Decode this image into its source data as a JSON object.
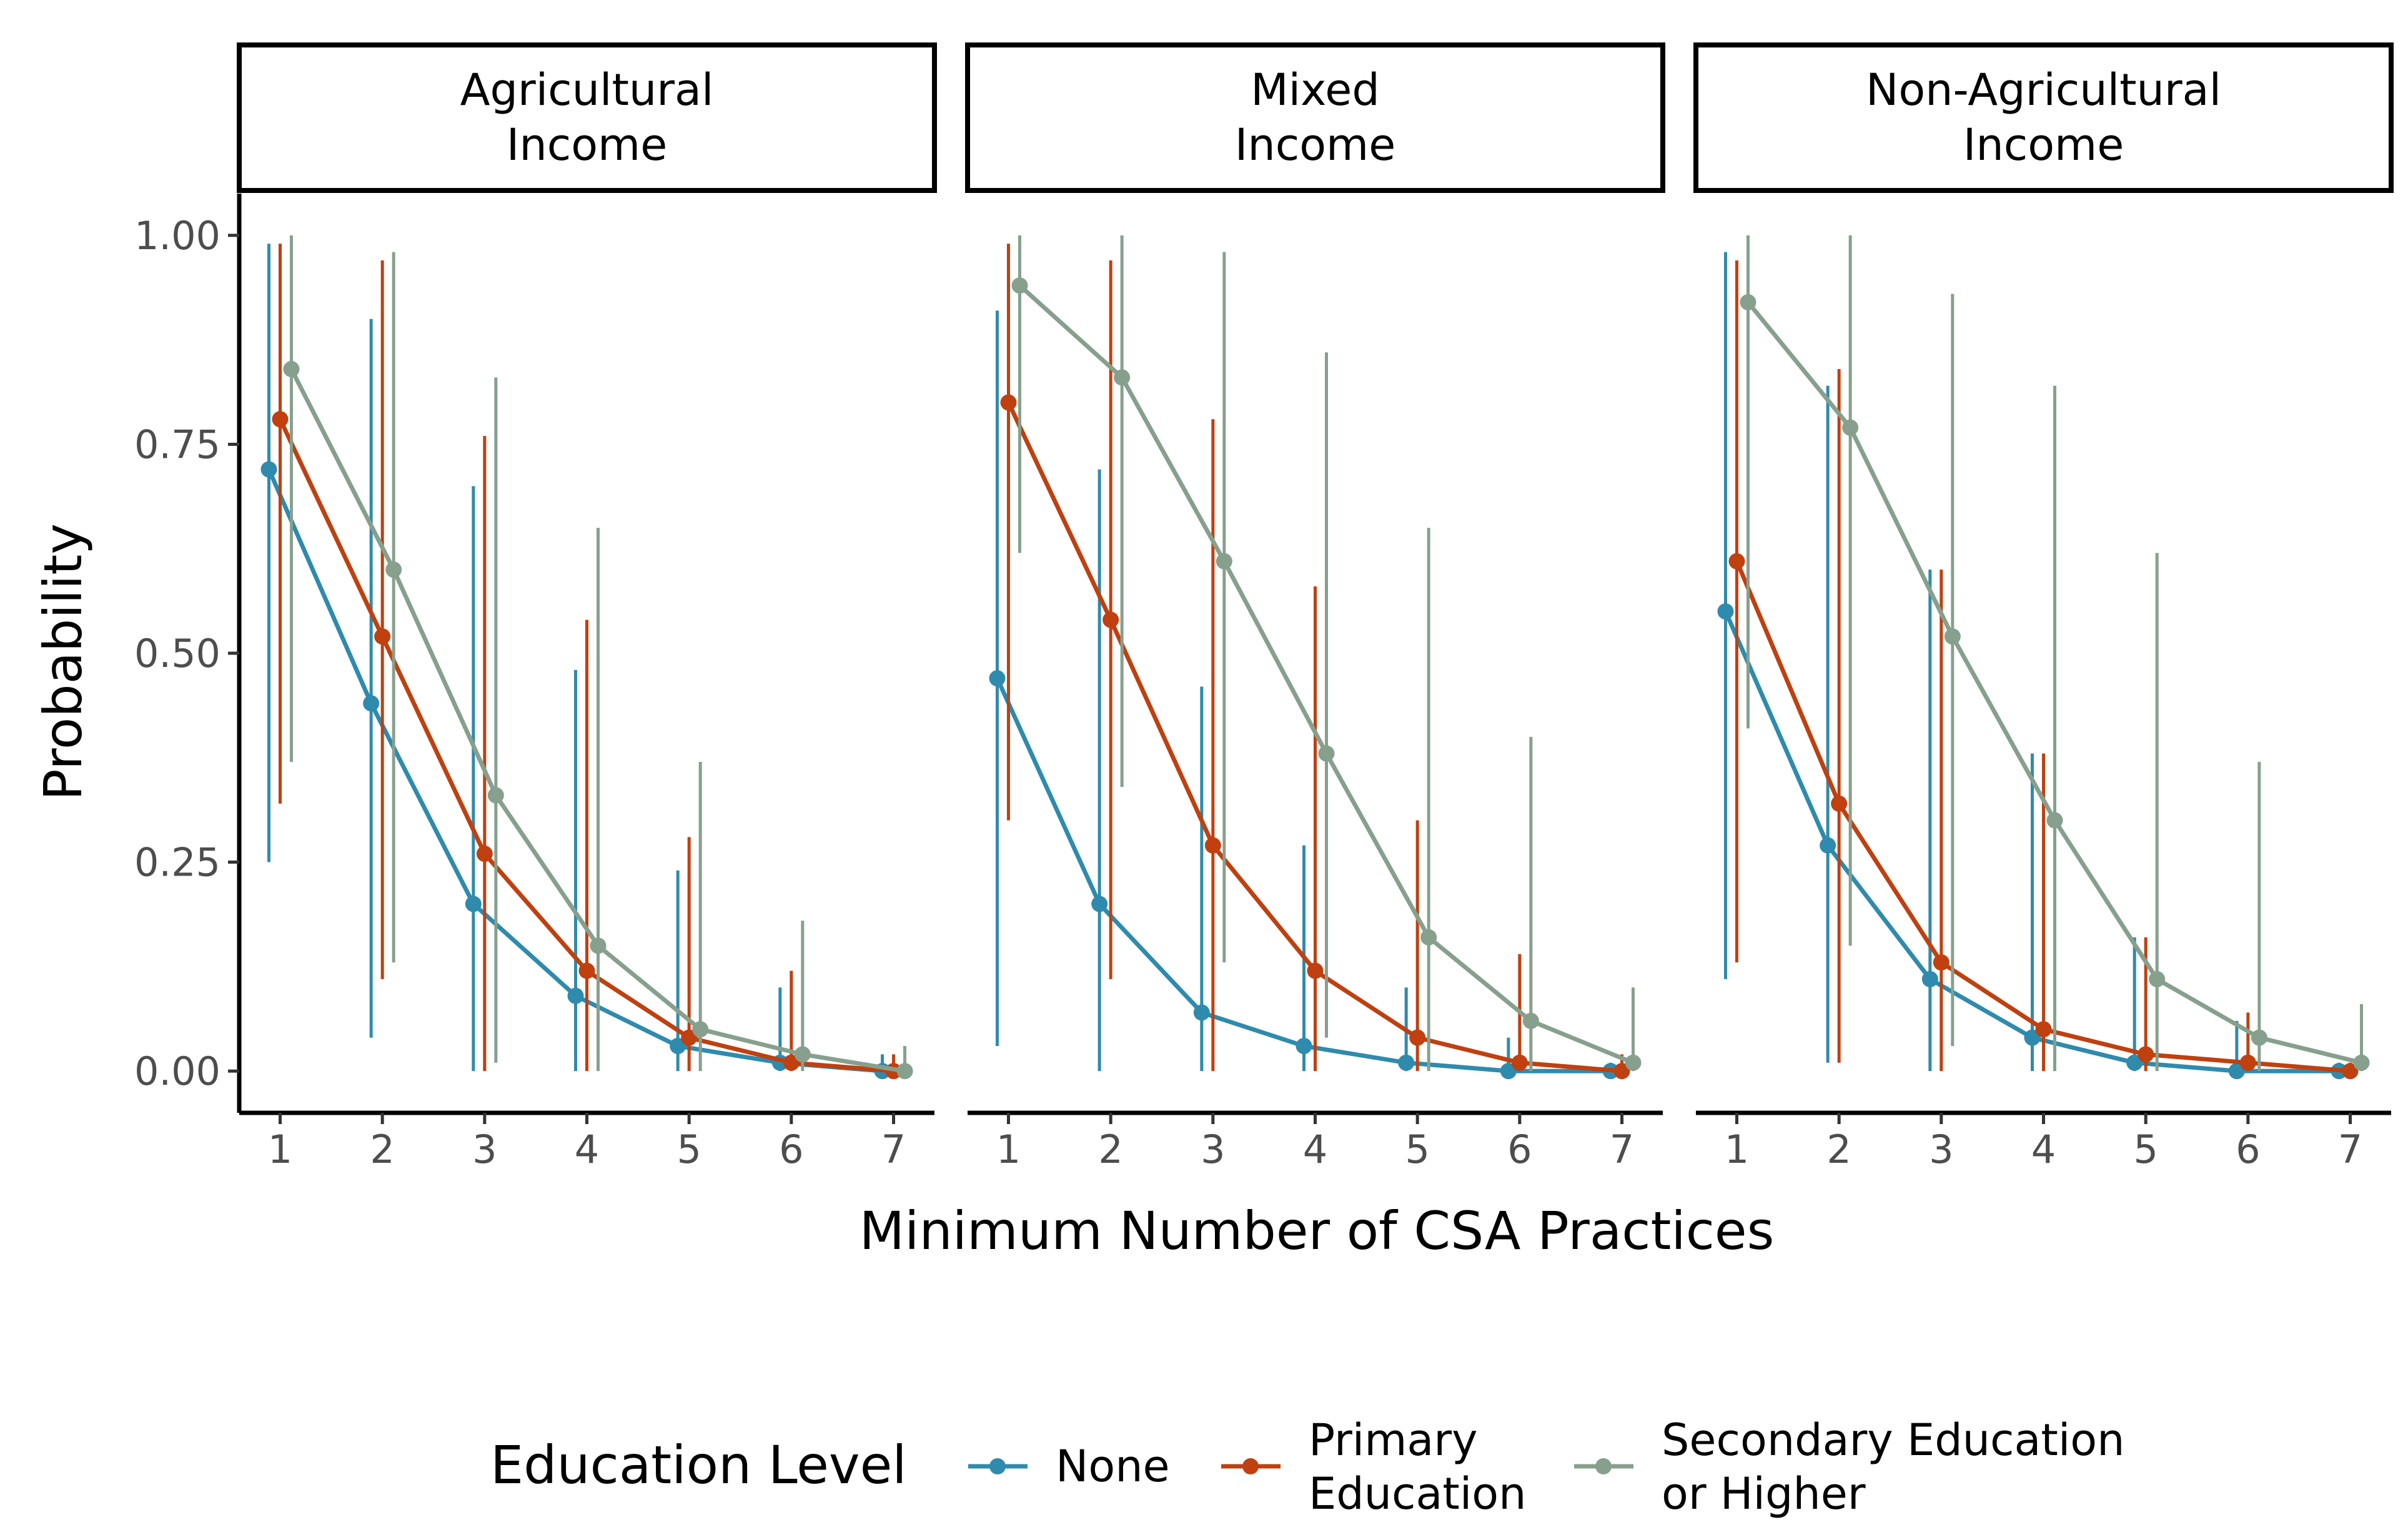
{
  "chart_data": {
    "type": "line",
    "facet_by": "Income Type",
    "panels": [
      {
        "title_lines": [
          "Agricultural",
          "Income"
        ],
        "series": [
          {
            "name": "None",
            "values": [
              0.72,
              0.44,
              0.2,
              0.09,
              0.03,
              0.01,
              0.0
            ],
            "lower": [
              0.25,
              0.04,
              0.0,
              0.0,
              0.0,
              0.0,
              0.0
            ],
            "upper": [
              0.99,
              0.9,
              0.7,
              0.48,
              0.24,
              0.1,
              0.02
            ]
          },
          {
            "name": "Primary Education",
            "values": [
              0.78,
              0.52,
              0.26,
              0.12,
              0.04,
              0.01,
              0.0
            ],
            "lower": [
              0.32,
              0.11,
              0.0,
              0.0,
              0.0,
              0.0,
              0.0
            ],
            "upper": [
              0.99,
              0.97,
              0.76,
              0.54,
              0.28,
              0.12,
              0.02
            ]
          },
          {
            "name": "Secondary Education or Higher",
            "values": [
              0.84,
              0.6,
              0.33,
              0.15,
              0.05,
              0.02,
              0.0
            ],
            "lower": [
              0.37,
              0.13,
              0.01,
              0.0,
              0.0,
              0.0,
              0.0
            ],
            "upper": [
              1.0,
              0.98,
              0.83,
              0.65,
              0.37,
              0.18,
              0.03
            ]
          }
        ]
      },
      {
        "title_lines": [
          "Mixed",
          "Income"
        ],
        "series": [
          {
            "name": "None",
            "values": [
              0.47,
              0.2,
              0.07,
              0.03,
              0.01,
              0.0,
              0.0
            ],
            "lower": [
              0.03,
              0.0,
              0.0,
              0.0,
              0.0,
              0.0,
              0.0
            ],
            "upper": [
              0.91,
              0.72,
              0.46,
              0.27,
              0.1,
              0.04,
              0.01
            ]
          },
          {
            "name": "Primary Education",
            "values": [
              0.8,
              0.54,
              0.27,
              0.12,
              0.04,
              0.01,
              0.0
            ],
            "lower": [
              0.3,
              0.11,
              0.0,
              0.0,
              0.0,
              0.0,
              0.0
            ],
            "upper": [
              0.99,
              0.97,
              0.78,
              0.58,
              0.3,
              0.14,
              0.02
            ]
          },
          {
            "name": "Secondary Education or Higher",
            "values": [
              0.94,
              0.83,
              0.61,
              0.38,
              0.16,
              0.06,
              0.01
            ],
            "lower": [
              0.62,
              0.34,
              0.13,
              0.04,
              0.0,
              0.0,
              0.0
            ],
            "upper": [
              1.0,
              1.0,
              0.98,
              0.86,
              0.65,
              0.4,
              0.1
            ]
          }
        ]
      },
      {
        "title_lines": [
          "Non-Agricultural",
          "Income"
        ],
        "series": [
          {
            "name": "None",
            "values": [
              0.55,
              0.27,
              0.11,
              0.04,
              0.01,
              0.0,
              0.0
            ],
            "lower": [
              0.11,
              0.01,
              0.0,
              0.0,
              0.0,
              0.0,
              0.0
            ],
            "upper": [
              0.98,
              0.82,
              0.6,
              0.38,
              0.16,
              0.06,
              0.01
            ]
          },
          {
            "name": "Primary Education",
            "values": [
              0.61,
              0.32,
              0.13,
              0.05,
              0.02,
              0.01,
              0.0
            ],
            "lower": [
              0.13,
              0.01,
              0.0,
              0.0,
              0.0,
              0.0,
              0.0
            ],
            "upper": [
              0.97,
              0.84,
              0.6,
              0.38,
              0.16,
              0.07,
              0.01
            ]
          },
          {
            "name": "Secondary Education or Higher",
            "values": [
              0.92,
              0.77,
              0.52,
              0.3,
              0.11,
              0.04,
              0.01
            ],
            "lower": [
              0.41,
              0.15,
              0.03,
              0.0,
              0.0,
              0.0,
              0.0
            ],
            "upper": [
              1.0,
              1.0,
              0.93,
              0.82,
              0.62,
              0.37,
              0.08
            ]
          }
        ]
      }
    ],
    "x": [
      1,
      2,
      3,
      4,
      5,
      6,
      7
    ],
    "x_tick_labels": [
      "1",
      "2",
      "3",
      "4",
      "5",
      "6",
      "7"
    ],
    "y_ticks": [
      0,
      0.25,
      0.5,
      0.75,
      1.0
    ],
    "y_tick_labels": [
      "0.00",
      "0.25",
      "0.50",
      "0.75",
      "1.00"
    ],
    "xlabel": "Minimum Number of CSA Practices",
    "ylabel": "Probability",
    "xlim": [
      0.6,
      7.4
    ],
    "ylim": [
      -0.05,
      1.05
    ],
    "grid": false,
    "legend": {
      "title": "Education Level",
      "position": "bottom",
      "items": [
        {
          "name": "None",
          "label_lines": [
            "None"
          ],
          "color": "#2e8bad"
        },
        {
          "name": "Primary Education",
          "label_lines": [
            "Primary",
            "Education"
          ],
          "color": "#c0400f"
        },
        {
          "name": "Secondary Education or Higher",
          "label_lines": [
            "Secondary Education",
            "or Higher"
          ],
          "color": "#86a08d"
        }
      ]
    }
  }
}
